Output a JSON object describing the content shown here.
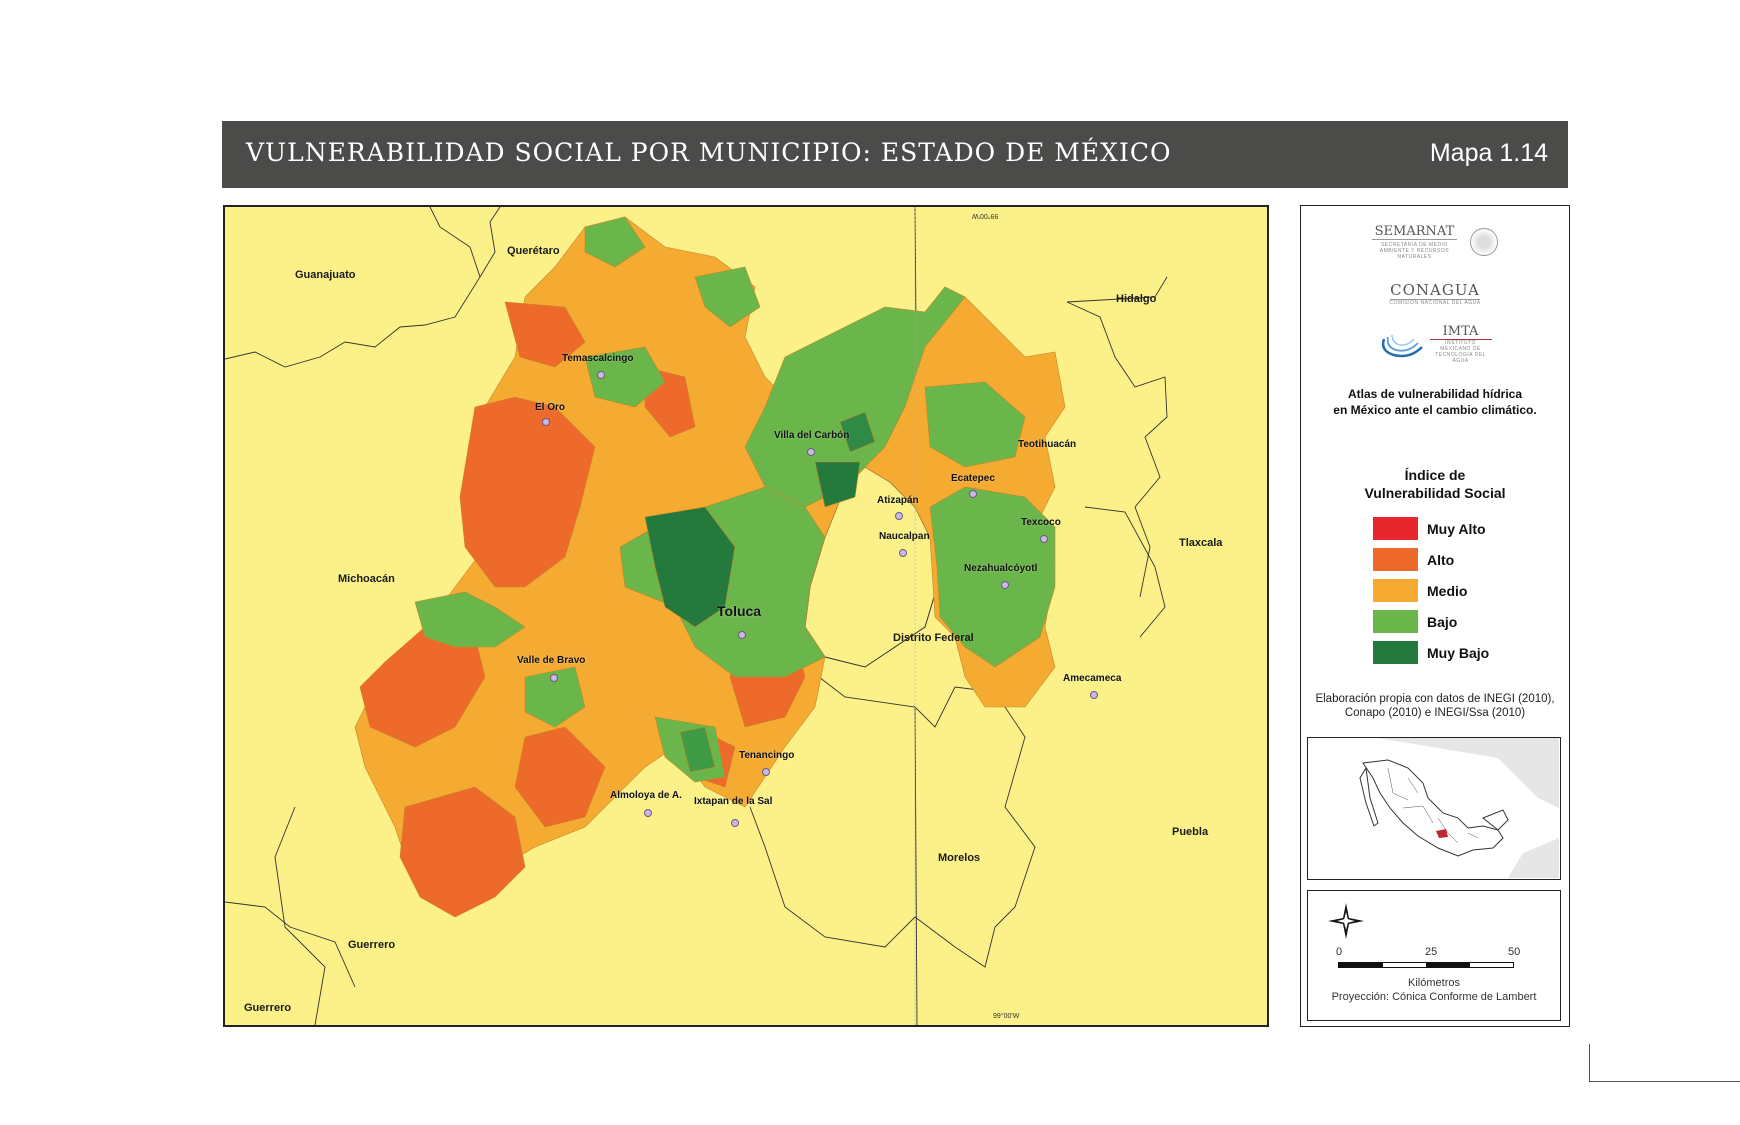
{
  "header": {
    "title": "VULNERABILIDAD SOCIAL POR MUNICIPIO: ESTADO DE MÉXICO",
    "map_number": "Mapa 1.14"
  },
  "map": {
    "neighbor_states": {
      "queretaro": "Querétaro",
      "guanajuato": "Guanajuato",
      "hidalgo": "Hidalgo",
      "michoacan": "Michoacán",
      "tlaxcala": "Tlaxcala",
      "distrito_federal": "Distrito Federal",
      "puebla": "Puebla",
      "morelos": "Morelos",
      "guerrero1": "Guerrero",
      "guerrero2": "Guerrero"
    },
    "cities": {
      "temascalcingo": "Temascalcingo",
      "el_oro": "El Oro",
      "villa_del_carbon": "Villa del Carbón",
      "teotihuacan": "Teotihuacán",
      "ecatepec": "Ecatepec",
      "atizapan": "Atizapán",
      "naucalpan": "Naucalpan",
      "texcoco": "Texcoco",
      "nezahualcoyotl": "Nezahualcóyotl",
      "toluca": "Toluca",
      "valle_de_bravo": "Valle de Bravo",
      "amecameca": "Amecameca",
      "tenancingo": "Tenancingo",
      "almoloya": "Almoloya de A.",
      "ixtapan": "Ixtapan de la Sal"
    },
    "meridian_label_top": "99°00'W",
    "meridian_label_bottom": "99°00'W"
  },
  "panel": {
    "logo_semarnat": "SEMARNAT",
    "logo_semarnat_sub": "SECRETARÍA DE MEDIO AMBIENTE Y RECURSOS NATURALES",
    "logo_conagua": "CONAGUA",
    "logo_conagua_sub": "COMISIÓN NACIONAL DEL AGUA",
    "logo_imta": "IMTA",
    "logo_imta_sub": "INSTITUTO MEXICANO DE TECNOLOGÍA DEL AGUA",
    "atlas_line1": "Atlas de vulnerabilidad  hídrica",
    "atlas_line2": "en México ante el cambio climático.",
    "legend_title_line1": "Índice de",
    "legend_title_line2": "Vulnerabilidad Social",
    "legend": [
      {
        "label": "Muy Alto",
        "color": "#e8262e"
      },
      {
        "label": "Alto",
        "color": "#ee6a2a"
      },
      {
        "label": "Medio",
        "color": "#f5ab32"
      },
      {
        "label": "Bajo",
        "color": "#6ab64a"
      },
      {
        "label": "Muy Bajo",
        "color": "#247a3c"
      }
    ],
    "source_line1": "Elaboración propia con datos de INEGI (2010),",
    "source_line2": "Conapo (2010) e INEGI/Ssa (2010)",
    "scale": {
      "tick0": "0",
      "tick1": "25",
      "tick2": "50",
      "unit": "Kilómetros",
      "projection": "Proyección: Cónica Conforme de Lambert"
    }
  },
  "colors": {
    "header_bg": "#4b4b49",
    "map_bg": "#fbf188",
    "muy_alto": "#e8262e",
    "alto": "#ee6a2a",
    "medio": "#f5ab32",
    "bajo": "#6ab64a",
    "muy_bajo": "#247a3c"
  }
}
